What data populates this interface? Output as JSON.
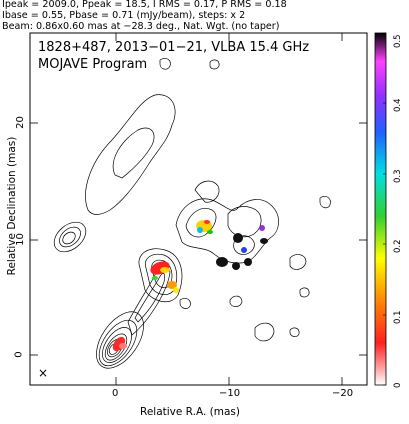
{
  "header": {
    "line1": "Ipeak = 2009.0, Ppeak = 18.5, I RMS = 0.17, P RMS = 0.18",
    "line2": "Ibase = 0.55, Pbase = 0.71 (mJy/beam), steps: x 2",
    "line3": "Beam: 0.86x0.60 mas at −28.3 deg., Nat. Wgt. (no taper)"
  },
  "plot": {
    "title": "1828+487, 2013−01−21, VLBA 15.4 GHz",
    "subtitle": "MOJAVE Program",
    "xlabel": "Relative R.A. (mas)",
    "ylabel": "Relative Declination (mas)",
    "xticks": [
      "0",
      "−10",
      "−20"
    ],
    "yticks": [
      "0",
      "10",
      "20"
    ],
    "beam_marker": "×"
  },
  "colorbar": {
    "ticks": [
      "0",
      "0.1",
      "0.2",
      "0.3",
      "0.4",
      "0.5"
    ]
  },
  "colors": {
    "frame": "#000000",
    "contour": "#000000"
  }
}
